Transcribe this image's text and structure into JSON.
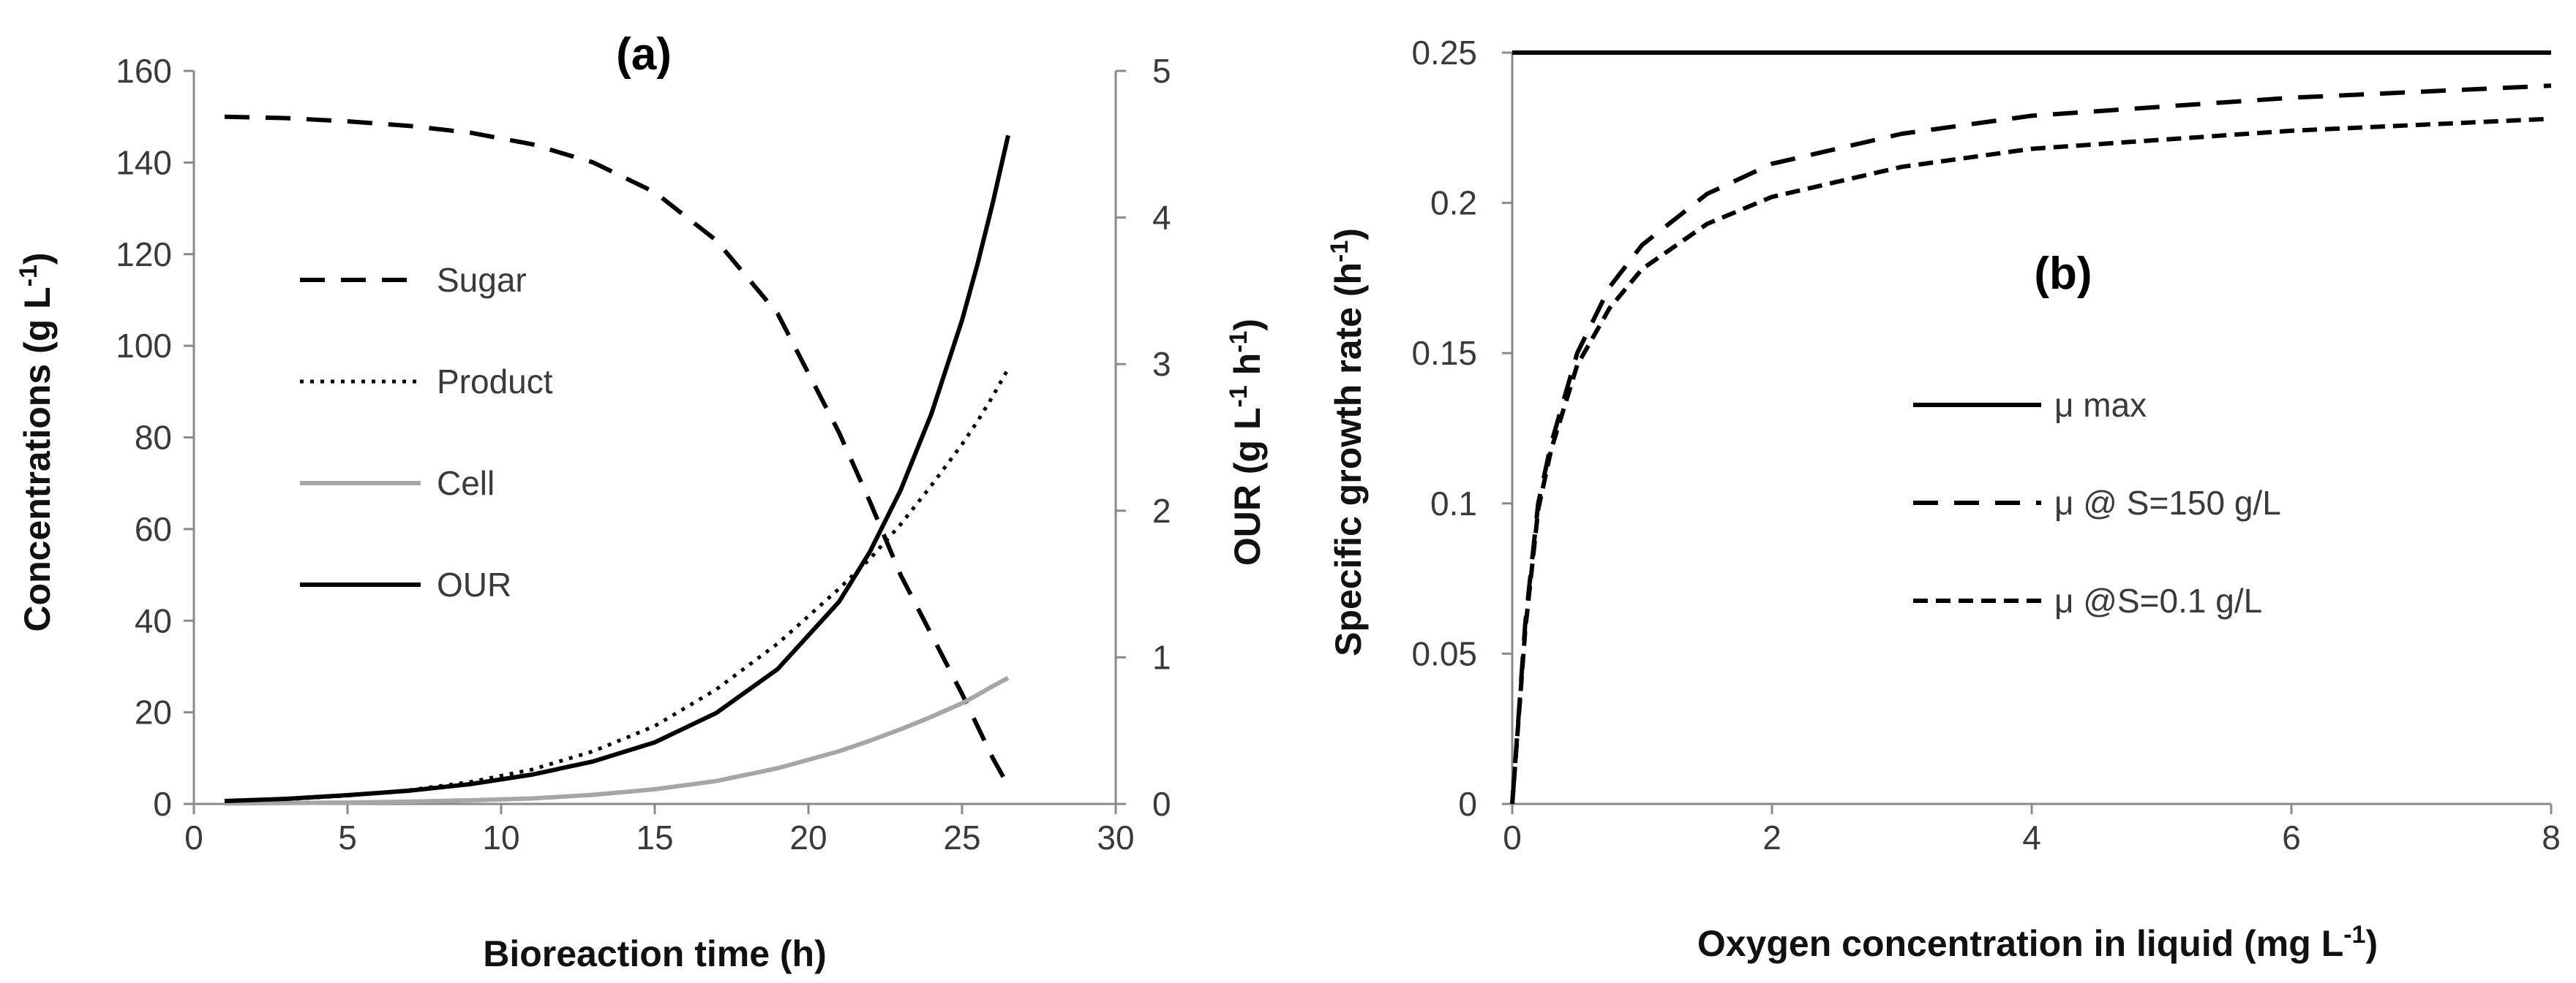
{
  "chart_data": [
    {
      "panel": "(a)",
      "type": "line",
      "title": "",
      "xlabel": "Bioreaction time (h)",
      "ylabel_left": "Concentrations (g L",
      "ylabel_left_sup": "-1",
      "ylabel_left_end": ")",
      "ylabel_right": "OUR (g L",
      "ylabel_right_sup1": "-1",
      "ylabel_right_mid": " h",
      "ylabel_right_sup2": "-1",
      "ylabel_right_end": ")",
      "xlim": [
        0,
        30
      ],
      "ylim_left": [
        0,
        160
      ],
      "ylim_right": [
        0,
        5
      ],
      "xticks": [
        "0",
        "5",
        "10",
        "15",
        "20",
        "25",
        "30"
      ],
      "yticks_left": [
        "0",
        "20",
        "40",
        "60",
        "80",
        "100",
        "120",
        "140",
        "160"
      ],
      "yticks_right": [
        "0",
        "1",
        "2",
        "3",
        "4",
        "5"
      ],
      "legend_position": "left-center",
      "series": [
        {
          "name": "Sugar",
          "axis": "left",
          "style": "dashed",
          "color": "#000000",
          "x": [
            1,
            3,
            5,
            7,
            9,
            11,
            13,
            15,
            17,
            19,
            21,
            22,
            23,
            24,
            25,
            25.5,
            26,
            26.5
          ],
          "y": [
            150,
            149.7,
            149,
            148,
            146.5,
            144,
            140,
            133.5,
            123,
            107,
            81,
            66,
            50,
            37,
            24,
            17,
            10,
            4
          ]
        },
        {
          "name": "Product",
          "axis": "left",
          "style": "dotted",
          "color": "#000000",
          "x": [
            1,
            3,
            5,
            7,
            9,
            11,
            13,
            15,
            17,
            19,
            21,
            22,
            23,
            24,
            25,
            25.5,
            26,
            26.5
          ],
          "y": [
            0.5,
            1,
            1.8,
            3,
            4.8,
            7.5,
            11.5,
            17,
            25,
            35,
            47,
            53.5,
            61,
            69.5,
            78.5,
            83.5,
            89,
            95
          ]
        },
        {
          "name": "Cell",
          "axis": "left",
          "style": "solid",
          "color": "#a6a6a6",
          "x": [
            1,
            3,
            5,
            7,
            9,
            11,
            13,
            15,
            17,
            19,
            21,
            22,
            23,
            24,
            25,
            25.5,
            26,
            26.5
          ],
          "y": [
            0.1,
            0.2,
            0.3,
            0.5,
            0.8,
            1.2,
            2,
            3.2,
            5,
            7.8,
            11.5,
            13.8,
            16.3,
            19,
            22,
            23.8,
            25.7,
            27.5
          ]
        },
        {
          "name": "OUR",
          "axis": "right",
          "style": "solid",
          "color": "#000000",
          "x": [
            1,
            3,
            5,
            7,
            9,
            11,
            13,
            15,
            17,
            19,
            21,
            22,
            23,
            24,
            25,
            25.5,
            26,
            26.5
          ],
          "y": [
            0.02,
            0.035,
            0.06,
            0.09,
            0.135,
            0.2,
            0.29,
            0.42,
            0.62,
            0.92,
            1.38,
            1.72,
            2.14,
            2.66,
            3.3,
            3.68,
            4.1,
            4.56
          ]
        }
      ]
    },
    {
      "panel": "(b)",
      "type": "line",
      "title": "",
      "xlabel": "Oxygen concentration in  liquid (mg L",
      "xlabel_sup": "-1",
      "xlabel_end": ")",
      "ylabel": "Specific growth rate (h",
      "ylabel_sup": "-1",
      "ylabel_end": ")",
      "xlim": [
        0,
        8
      ],
      "ylim": [
        0,
        0.25
      ],
      "xticks": [
        "0",
        "2",
        "4",
        "6",
        "8"
      ],
      "yticks": [
        "0",
        "0.05",
        "0.1",
        "0.15",
        "0.2",
        "0.25"
      ],
      "legend_position": "center",
      "series": [
        {
          "name": "μ max",
          "style": "solid",
          "color": "#000000",
          "x": [
            0,
            2,
            4,
            6,
            8
          ],
          "y": [
            0.25,
            0.25,
            0.25,
            0.25,
            0.25
          ]
        },
        {
          "name": "μ @ S=150 g/L",
          "style": "dashed",
          "color": "#000000",
          "x": [
            0,
            0.1,
            0.2,
            0.3,
            0.5,
            0.75,
            1,
            1.5,
            2,
            3,
            4,
            5,
            6,
            7,
            8
          ],
          "y": [
            0,
            0.06,
            0.1,
            0.12,
            0.15,
            0.172,
            0.186,
            0.203,
            0.213,
            0.223,
            0.229,
            0.232,
            0.235,
            0.237,
            0.239
          ]
        },
        {
          "name": "μ @S=0.1 g/L",
          "style": "short-dashed",
          "color": "#000000",
          "x": [
            0,
            0.1,
            0.2,
            0.3,
            0.5,
            0.75,
            1,
            1.5,
            2,
            3,
            4,
            5,
            6,
            7,
            8
          ],
          "y": [
            0,
            0.058,
            0.098,
            0.118,
            0.146,
            0.165,
            0.178,
            0.193,
            0.202,
            0.212,
            0.218,
            0.221,
            0.224,
            0.226,
            0.228
          ]
        }
      ]
    }
  ]
}
